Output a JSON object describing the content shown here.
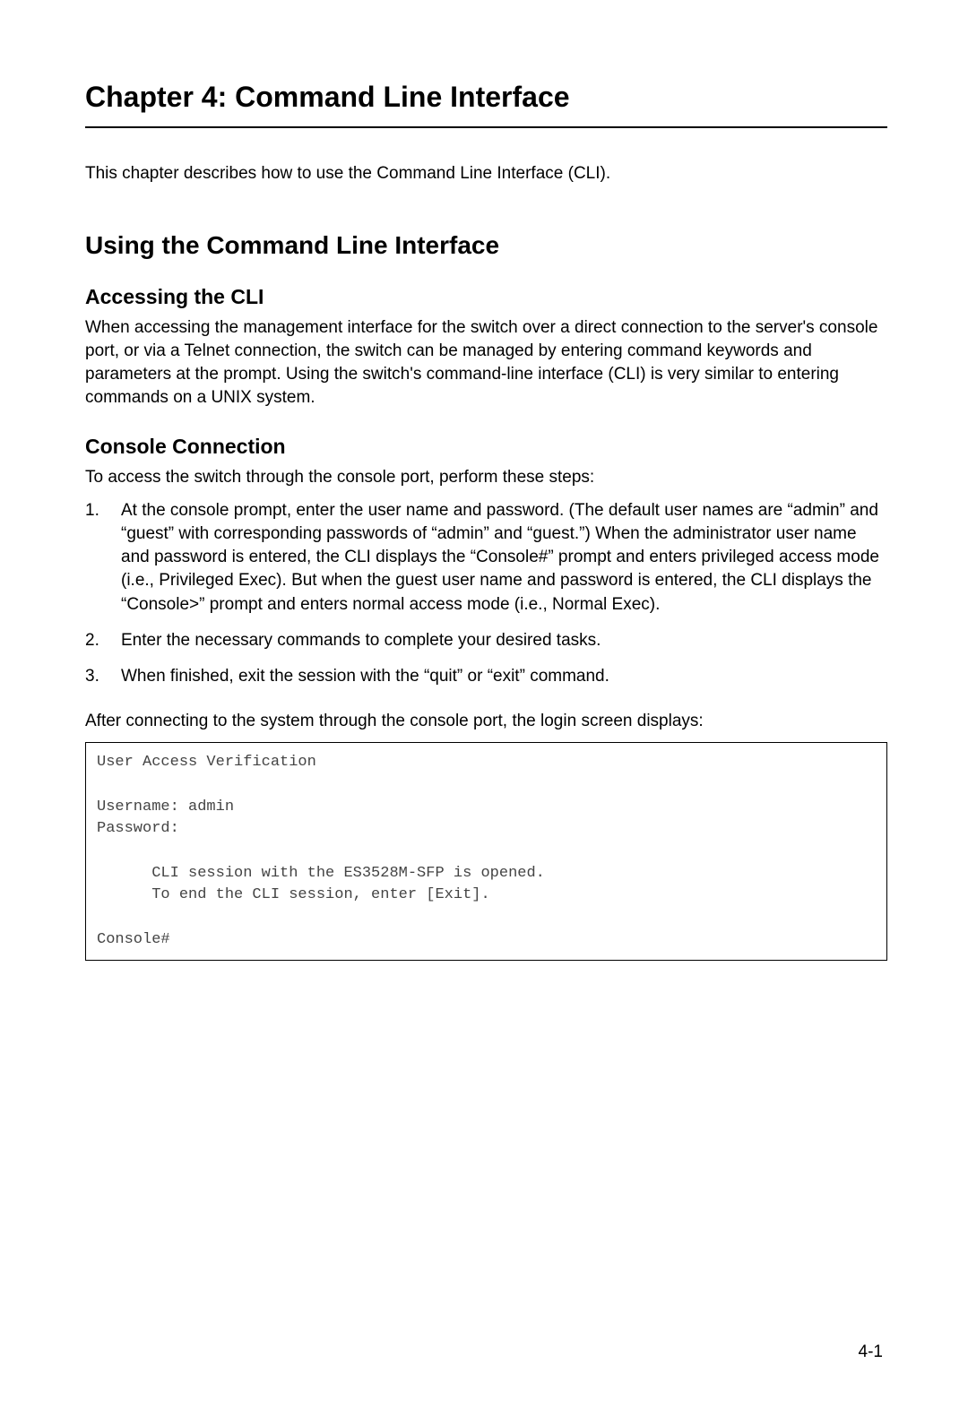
{
  "chapter": {
    "title": "Chapter 4: Command Line Interface",
    "intro": "This chapter describes how to use the Command Line Interface (CLI)."
  },
  "section": {
    "title": "Using the Command Line Interface"
  },
  "subsection1": {
    "title": "Accessing the CLI",
    "body": "When accessing the management interface for the switch over a direct connection to the server's console port, or via a Telnet connection, the switch can be managed by entering command keywords and parameters at the prompt. Using the switch's command-line interface (CLI) is very similar to entering commands on a UNIX system."
  },
  "subsection2": {
    "title": "Console Connection",
    "intro": "To access the switch through the console port, perform these steps:",
    "steps": [
      "At the console prompt, enter the user name and password. (The default user names are “admin” and “guest” with corresponding passwords of “admin” and “guest.”) When the administrator user name and password is entered, the CLI displays the “Console#” prompt and enters privileged access mode (i.e., Privileged Exec). But when the guest user name and password is entered, the CLI displays the “Console>” prompt and enters normal access mode (i.e., Normal Exec).",
      "Enter the necessary commands to complete your desired tasks.",
      "When finished, exit the session with the “quit” or “exit” command."
    ],
    "after_steps": "After connecting to the system through the console port, the login screen displays:",
    "code": "User Access Verification\n\nUsername: admin\nPassword:\n\n      CLI session with the ES3528M-SFP is opened.\n      To end the CLI session, enter [Exit].\n\nConsole#"
  },
  "page_number": "4-1",
  "list_numbers": [
    "1.",
    "2.",
    "3."
  ]
}
